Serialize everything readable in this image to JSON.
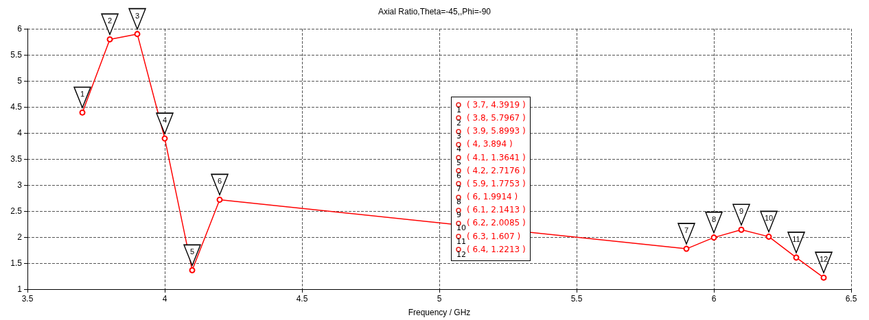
{
  "chart_data": {
    "type": "line",
    "title": "Axial Ratio,Theta=-45,,Phi=-90",
    "xlabel": "Frequency / GHz",
    "series": [
      {
        "color": "#ff0000",
        "x": [
          3.7,
          3.8,
          3.9,
          4,
          4.1,
          4.2,
          5.9,
          6,
          6.1,
          6.2,
          6.3,
          6.4
        ],
        "values": [
          4.3919,
          5.7967,
          5.8993,
          3.894,
          1.3641,
          2.7176,
          1.7753,
          1.9914,
          2.1413,
          2.0085,
          1.607,
          1.2213
        ]
      }
    ],
    "xlim": [
      3.5,
      6.5
    ],
    "xticks": [
      3.5,
      4,
      4.5,
      5,
      5.5,
      6,
      6.5
    ],
    "ylim": [
      1,
      6
    ],
    "yticks": [
      1,
      1.5,
      2,
      2.5,
      3,
      3.5,
      4,
      4.5,
      5,
      5.5,
      6
    ],
    "grid": true,
    "marker": "circle",
    "line_style": "solid",
    "annotations": [
      {
        "text": "1",
        "x": 3.7,
        "y": 4.3919
      },
      {
        "text": "2",
        "x": 3.8,
        "y": 5.7967
      },
      {
        "text": "3",
        "x": 3.9,
        "y": 5.8993
      },
      {
        "text": "4",
        "x": 4,
        "y": 3.894
      },
      {
        "text": "5",
        "x": 4.1,
        "y": 1.3641
      },
      {
        "text": "6",
        "x": 4.2,
        "y": 2.7176
      },
      {
        "text": "7",
        "x": 5.9,
        "y": 1.7753
      },
      {
        "text": "8",
        "x": 6,
        "y": 1.9914
      },
      {
        "text": "9",
        "x": 6.1,
        "y": 2.1413
      },
      {
        "text": "10",
        "x": 6.2,
        "y": 2.0085
      },
      {
        "text": "11",
        "x": 6.3,
        "y": 1.607
      },
      {
        "text": "12",
        "x": 6.4,
        "y": 1.2213
      },
      "( 3.7, 4.3919 )",
      "( 3.8, 5.7967 )",
      "( 3.9, 5.8993 )",
      "( 4, 3.894 )",
      "( 4.1, 1.3641 )",
      "( 4.2, 2.7176 )",
      "( 5.9, 1.7753 )",
      "( 6, 1.9914 )",
      "( 6.1, 2.1413 )",
      "( 6.2, 2.0085 )",
      "( 6.3, 1.607 )",
      "( 6.4, 1.2213 )"
    ]
  }
}
